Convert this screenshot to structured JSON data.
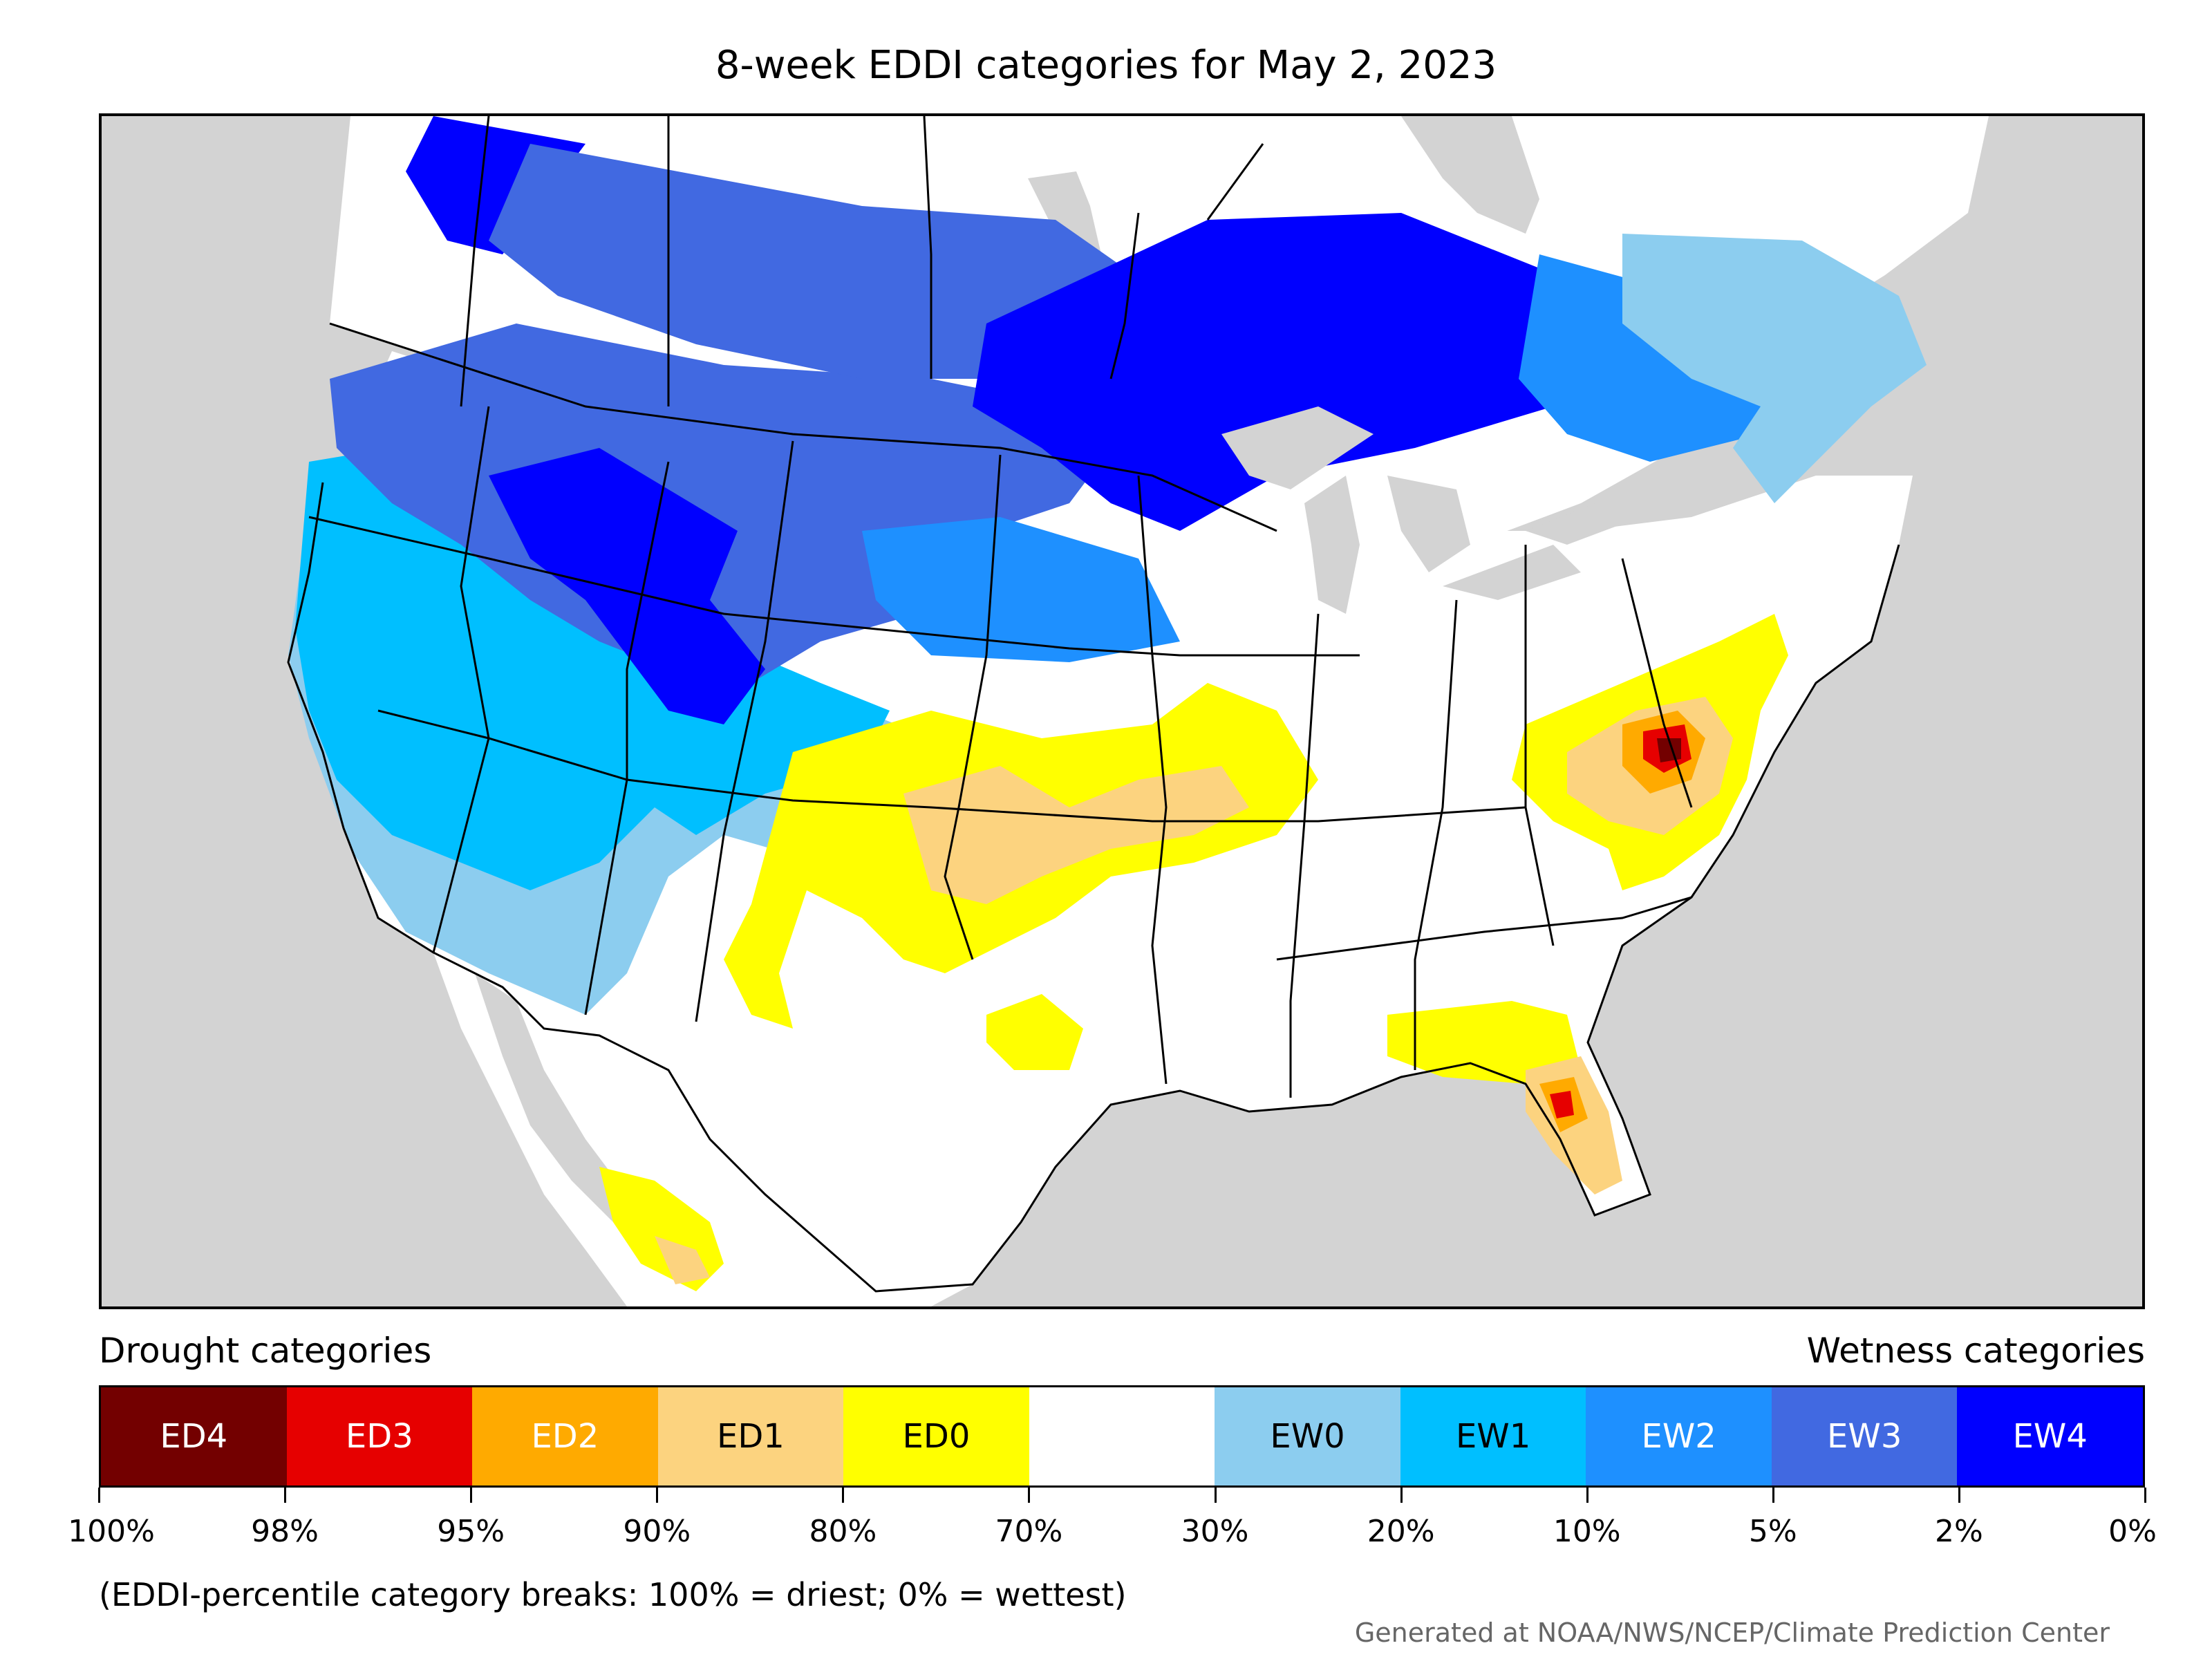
{
  "title": "8-week EDDI categories for May 2, 2023",
  "legend": {
    "left_heading": "Drought categories",
    "right_heading": "Wetness categories",
    "categories": [
      {
        "label": "ED4",
        "color": "#730000",
        "text_color": "#ffffff"
      },
      {
        "label": "ED3",
        "color": "#e60000",
        "text_color": "#ffffff"
      },
      {
        "label": "ED2",
        "color": "#ffaa00",
        "text_color": "#ffffff"
      },
      {
        "label": "ED1",
        "color": "#fcd37f",
        "text_color": "#000000"
      },
      {
        "label": "ED0",
        "color": "#ffff00",
        "text_color": "#000000"
      },
      {
        "label": "",
        "color": "#ffffff",
        "text_color": "#000000"
      },
      {
        "label": "EW0",
        "color": "#8ccdef",
        "text_color": "#000000"
      },
      {
        "label": "EW1",
        "color": "#00bfff",
        "text_color": "#000000"
      },
      {
        "label": "EW2",
        "color": "#1e90ff",
        "text_color": "#ffffff"
      },
      {
        "label": "EW3",
        "color": "#4169e1",
        "text_color": "#ffffff"
      },
      {
        "label": "EW4",
        "color": "#0000ff",
        "text_color": "#ffffff"
      }
    ],
    "tick_labels": [
      "100%",
      "98%",
      "95%",
      "90%",
      "80%",
      "70%",
      "30%",
      "20%",
      "10%",
      "5%",
      "2%",
      "0%"
    ],
    "note": "(EDDI-percentile category breaks: 100% = driest; 0% = wettest)"
  },
  "credit": "Generated at NOAA/NWS/NCEP/Climate Prediction Center",
  "colors": {
    "background_gray": "#d3d3d3",
    "ed4": "#730000",
    "ed3": "#e60000",
    "ed2": "#ffaa00",
    "ed1": "#fcd37f",
    "ed0": "#ffff00",
    "ew0": "#8ccdef",
    "ew1": "#00bfff",
    "ew2": "#1e90ff",
    "ew3": "#4169e1",
    "ew4": "#0000ff"
  }
}
